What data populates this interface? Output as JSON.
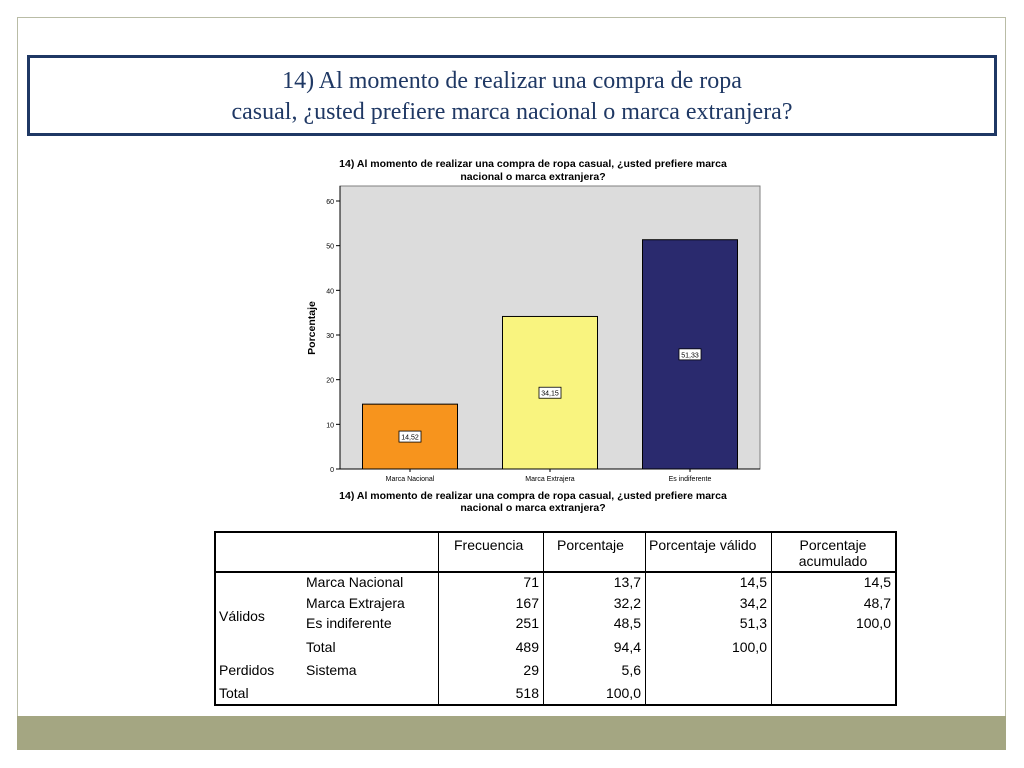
{
  "slide": {
    "title_line1": "14) Al momento de realizar una compra de ropa",
    "title_line2": "casual, ¿usted prefiere marca nacional o marca extranjera?"
  },
  "chart_data": {
    "type": "bar",
    "title_line1": "14) Al momento de realizar una compra de ropa casual, ¿usted prefiere marca",
    "title_line2": "nacional o marca extranjera?",
    "xlabel_line1": "14) Al momento de realizar una compra de ropa casual, ¿usted prefiere marca",
    "xlabel_line2": "nacional o marca extranjera?",
    "ylabel": "Porcentaje",
    "categories": [
      "Marca Nacional",
      "Marca Extrajera",
      "Es indiferente"
    ],
    "values": [
      14.52,
      34.15,
      51.33
    ],
    "value_labels": [
      "14,52",
      "34,15",
      "51,33"
    ],
    "colors": [
      "#f7941d",
      "#f9f47f",
      "#2a2a6e"
    ],
    "ylim": [
      0,
      60
    ],
    "yticks": [
      "0",
      "10",
      "20",
      "30",
      "40",
      "50",
      "60"
    ],
    "plot_background": "#dcdcdc",
    "grid": false
  },
  "table": {
    "headers": [
      "Frecuencia",
      "Porcentaje",
      "Porcentaje válido",
      "Porcentaje acumulado"
    ],
    "header_last_line1": "Porcentaje",
    "header_last_line2": "acumulado",
    "group_validos": "Válidos",
    "group_perdidos": "Perdidos",
    "group_total": "Total",
    "rows": [
      {
        "label": "Marca Nacional",
        "freq": "71",
        "pct": "13,7",
        "valid": "14,5",
        "cum": "14,5"
      },
      {
        "label": "Marca Extrajera",
        "freq": "167",
        "pct": "32,2",
        "valid": "34,2",
        "cum": "48,7"
      },
      {
        "label": "Es indiferente",
        "freq": "251",
        "pct": "48,5",
        "valid": "51,3",
        "cum": "100,0"
      },
      {
        "label": "Total",
        "freq": "489",
        "pct": "94,4",
        "valid": "100,0",
        "cum": ""
      },
      {
        "label": "Sistema",
        "freq": "29",
        "pct": "5,6",
        "valid": "",
        "cum": ""
      },
      {
        "label": "",
        "freq": "518",
        "pct": "100,0",
        "valid": "",
        "cum": ""
      }
    ]
  }
}
